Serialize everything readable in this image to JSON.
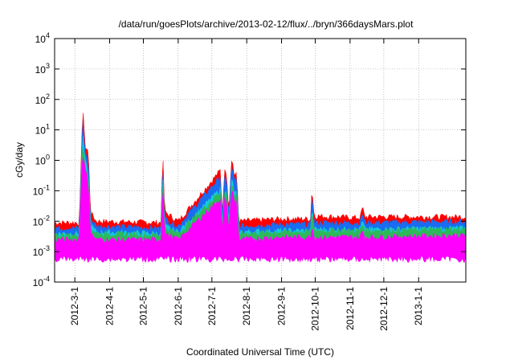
{
  "chart_data": {
    "type": "area",
    "title": "/data/run/goesPlots/archive/2013-02-12/flux/../bryn/366daysMars.plot",
    "xlabel": "Coordinated Universal Time (UTC)",
    "ylabel": "cGy/day",
    "yscale": "log",
    "ylim": [
      0.0001,
      10000
    ],
    "y_ticks": [
      {
        "value": 0.0001,
        "base": "10",
        "exp": "-4"
      },
      {
        "value": 0.001,
        "base": "10",
        "exp": "-3"
      },
      {
        "value": 0.01,
        "base": "10",
        "exp": "-2"
      },
      {
        "value": 0.1,
        "base": "10",
        "exp": "-1"
      },
      {
        "value": 1,
        "base": "10",
        "exp": "0"
      },
      {
        "value": 10,
        "base": "10",
        "exp": "1"
      },
      {
        "value": 100,
        "base": "10",
        "exp": "2"
      },
      {
        "value": 1000,
        "base": "10",
        "exp": "3"
      },
      {
        "value": 10000,
        "base": "10",
        "exp": "4"
      }
    ],
    "xlim": [
      "2012-02-12",
      "2013-02-12"
    ],
    "x_ticks": [
      "2012-3-1",
      "2012-4-1",
      "2012-5-1",
      "2012-6-1",
      "2012-7-1",
      "2012-8-1",
      "2012-9-1",
      "2012-10-1",
      "2012-11-1",
      "2012-12-1",
      "2013-1-1"
    ],
    "grid": true,
    "legend": "none",
    "series": [
      {
        "color": "#ff0000",
        "points": [
          [
            "2012-02-12",
            0.009
          ],
          [
            "2012-03-05",
            0.009
          ],
          [
            "2012-03-07",
            3
          ],
          [
            "2012-03-08",
            70
          ],
          [
            "2012-03-10",
            3
          ],
          [
            "2012-03-13",
            2
          ],
          [
            "2012-03-15",
            0.02
          ],
          [
            "2012-03-20",
            0.01
          ],
          [
            "2012-05-17",
            0.009
          ],
          [
            "2012-05-18",
            3.5
          ],
          [
            "2012-05-20",
            0.02
          ],
          [
            "2012-06-01",
            0.01
          ],
          [
            "2012-07-07",
            0.4
          ],
          [
            "2012-07-09",
            0.5
          ],
          [
            "2012-07-10",
            0.01
          ],
          [
            "2012-07-12",
            0.4
          ],
          [
            "2012-07-14",
            0.5
          ],
          [
            "2012-07-16",
            0.02
          ],
          [
            "2012-07-18",
            0.6
          ],
          [
            "2012-07-19",
            1.2
          ],
          [
            "2012-07-21",
            0.3
          ],
          [
            "2012-07-23",
            0.35
          ],
          [
            "2012-07-25",
            0.01
          ],
          [
            "2012-09-01",
            0.012
          ],
          [
            "2012-09-27",
            0.012
          ],
          [
            "2012-09-28",
            0.15
          ],
          [
            "2012-09-30",
            0.015
          ],
          [
            "2012-11-10",
            0.013
          ],
          [
            "2012-11-12",
            0.03
          ],
          [
            "2012-11-14",
            0.014
          ],
          [
            "2013-02-12",
            0.014
          ]
        ]
      },
      {
        "color": "#1a6cf0",
        "points": [
          [
            "2012-02-12",
            0.006
          ],
          [
            "2012-03-05",
            0.006
          ],
          [
            "2012-03-07",
            2
          ],
          [
            "2012-03-08",
            30
          ],
          [
            "2012-03-10",
            2
          ],
          [
            "2012-03-13",
            1
          ],
          [
            "2012-03-15",
            0.012
          ],
          [
            "2012-03-20",
            0.007
          ],
          [
            "2012-05-17",
            0.006
          ],
          [
            "2012-05-18",
            2
          ],
          [
            "2012-05-20",
            0.012
          ],
          [
            "2012-06-01",
            0.007
          ],
          [
            "2012-07-07",
            0.25
          ],
          [
            "2012-07-09",
            0.3
          ],
          [
            "2012-07-10",
            0.007
          ],
          [
            "2012-07-12",
            0.25
          ],
          [
            "2012-07-14",
            0.3
          ],
          [
            "2012-07-16",
            0.012
          ],
          [
            "2012-07-18",
            0.4
          ],
          [
            "2012-07-19",
            0.7
          ],
          [
            "2012-07-21",
            0.2
          ],
          [
            "2012-07-23",
            0.22
          ],
          [
            "2012-07-25",
            0.007
          ],
          [
            "2012-09-01",
            0.008
          ],
          [
            "2012-09-27",
            0.008
          ],
          [
            "2012-09-28",
            0.12
          ],
          [
            "2012-09-30",
            0.009
          ],
          [
            "2012-11-10",
            0.009
          ],
          [
            "2012-11-12",
            0.02
          ],
          [
            "2012-11-14",
            0.009
          ],
          [
            "2013-02-12",
            0.01
          ]
        ]
      },
      {
        "color": "#14c8d8",
        "points": [
          [
            "2012-02-12",
            0.004
          ],
          [
            "2012-03-05",
            0.004
          ],
          [
            "2012-03-07",
            1
          ],
          [
            "2012-03-08",
            8
          ],
          [
            "2012-03-10",
            1
          ],
          [
            "2012-03-13",
            0.4
          ],
          [
            "2012-03-15",
            0.008
          ],
          [
            "2012-03-20",
            0.0045
          ],
          [
            "2012-05-17",
            0.004
          ],
          [
            "2012-05-18",
            0.8
          ],
          [
            "2012-05-20",
            0.007
          ],
          [
            "2012-06-01",
            0.0045
          ],
          [
            "2012-07-07",
            0.1
          ],
          [
            "2012-07-09",
            0.12
          ],
          [
            "2012-07-10",
            0.0045
          ],
          [
            "2012-07-12",
            0.1
          ],
          [
            "2012-07-14",
            0.12
          ],
          [
            "2012-07-16",
            0.007
          ],
          [
            "2012-07-18",
            0.15
          ],
          [
            "2012-07-19",
            0.25
          ],
          [
            "2012-07-21",
            0.08
          ],
          [
            "2012-07-23",
            0.09
          ],
          [
            "2012-07-25",
            0.0045
          ],
          [
            "2012-09-01",
            0.005
          ],
          [
            "2012-09-27",
            0.005
          ],
          [
            "2012-09-28",
            0.03
          ],
          [
            "2012-09-30",
            0.0055
          ],
          [
            "2012-11-10",
            0.0055
          ],
          [
            "2012-11-12",
            0.01
          ],
          [
            "2012-11-14",
            0.0055
          ],
          [
            "2013-02-12",
            0.006
          ]
        ]
      },
      {
        "color": "#2fb85a",
        "points": [
          [
            "2012-02-12",
            0.0035
          ],
          [
            "2012-03-05",
            0.0035
          ],
          [
            "2012-03-07",
            0.8
          ],
          [
            "2012-03-08",
            5
          ],
          [
            "2012-03-10",
            0.8
          ],
          [
            "2012-03-13",
            0.3
          ],
          [
            "2012-03-15",
            0.006
          ],
          [
            "2012-03-20",
            0.004
          ],
          [
            "2012-05-17",
            0.0035
          ],
          [
            "2012-05-18",
            0.6
          ],
          [
            "2012-05-20",
            0.006
          ],
          [
            "2012-06-01",
            0.004
          ],
          [
            "2012-07-07",
            0.08
          ],
          [
            "2012-07-09",
            0.1
          ],
          [
            "2012-07-10",
            0.004
          ],
          [
            "2012-07-12",
            0.08
          ],
          [
            "2012-07-14",
            0.1
          ],
          [
            "2012-07-16",
            0.006
          ],
          [
            "2012-07-18",
            0.12
          ],
          [
            "2012-07-19",
            0.2
          ],
          [
            "2012-07-21",
            0.06
          ],
          [
            "2012-07-23",
            0.07
          ],
          [
            "2012-07-25",
            0.004
          ],
          [
            "2012-09-01",
            0.0045
          ],
          [
            "2012-09-27",
            0.0045
          ],
          [
            "2012-09-28",
            0.02
          ],
          [
            "2012-09-30",
            0.005
          ],
          [
            "2012-11-10",
            0.005
          ],
          [
            "2012-11-12",
            0.008
          ],
          [
            "2012-11-14",
            0.005
          ],
          [
            "2013-02-12",
            0.0055
          ]
        ]
      },
      {
        "color": "#ff00ff",
        "points": [
          [
            "2012-02-12",
            0.0025
          ],
          [
            "2012-03-05",
            0.0025
          ],
          [
            "2012-03-07",
            0.5
          ],
          [
            "2012-03-08",
            2
          ],
          [
            "2012-03-10",
            0.5
          ],
          [
            "2012-03-13",
            0.2
          ],
          [
            "2012-03-15",
            0.004
          ],
          [
            "2012-03-20",
            0.0025
          ],
          [
            "2012-05-17",
            0.0025
          ],
          [
            "2012-05-18",
            0.4
          ],
          [
            "2012-05-20",
            0.004
          ],
          [
            "2012-06-01",
            0.0025
          ],
          [
            "2012-07-07",
            0.05
          ],
          [
            "2012-07-09",
            0.06
          ],
          [
            "2012-07-10",
            0.0025
          ],
          [
            "2012-07-12",
            0.05
          ],
          [
            "2012-07-14",
            0.06
          ],
          [
            "2012-07-16",
            0.004
          ],
          [
            "2012-07-18",
            0.08
          ],
          [
            "2012-07-19",
            0.12
          ],
          [
            "2012-07-21",
            0.04
          ],
          [
            "2012-07-23",
            0.045
          ],
          [
            "2012-07-25",
            0.0025
          ],
          [
            "2012-09-01",
            0.003
          ],
          [
            "2012-09-27",
            0.003
          ],
          [
            "2012-09-28",
            0.008
          ],
          [
            "2012-09-30",
            0.003
          ],
          [
            "2012-11-10",
            0.003
          ],
          [
            "2012-11-12",
            0.005
          ],
          [
            "2012-11-14",
            0.003
          ],
          [
            "2013-02-12",
            0.0035
          ]
        ]
      }
    ],
    "floor": 0.0007
  }
}
